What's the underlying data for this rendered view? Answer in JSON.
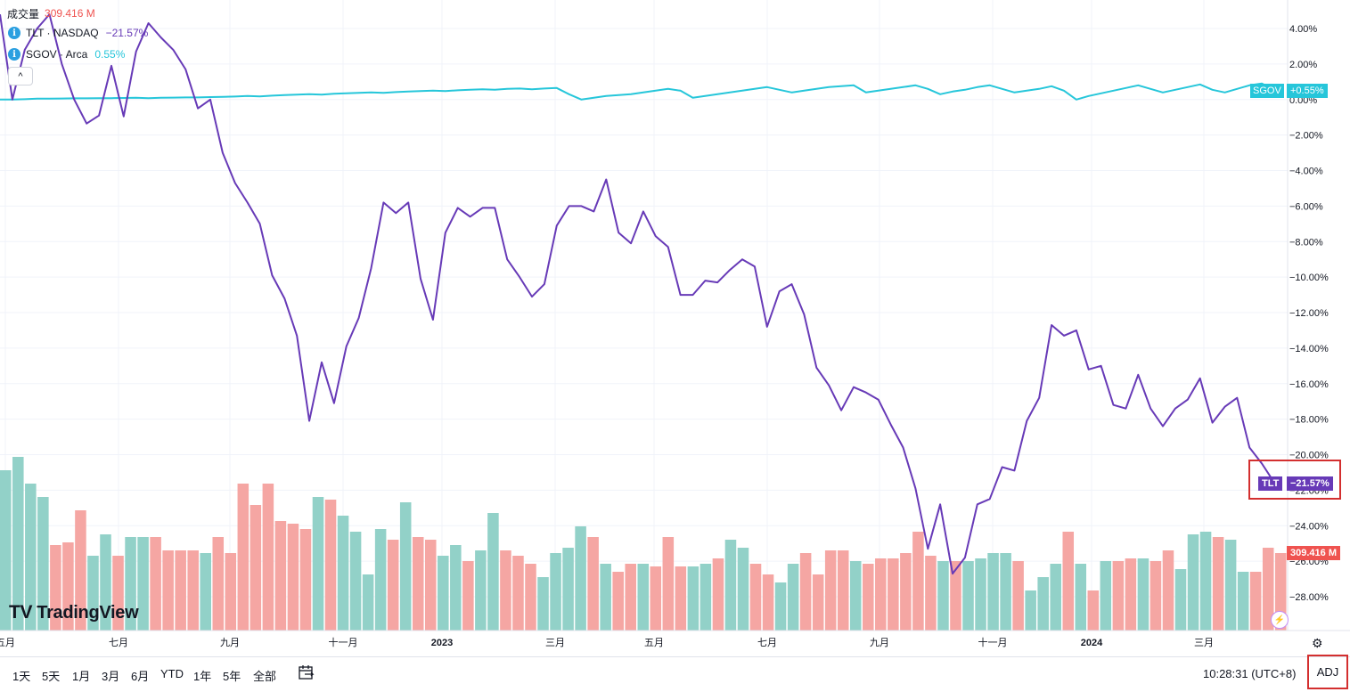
{
  "legend": {
    "volume_label": "成交量",
    "volume_value": "309.416 M",
    "series1_name": "TLT · NASDAQ",
    "series1_value": "−21.57%",
    "series2_name": "SGOV · Arca",
    "series2_value": "0.55%",
    "collapse_icon": "chevron-up-icon"
  },
  "colors": {
    "tlt": "#673ab7",
    "sgov": "#26c6da",
    "vol_up": "#92d1c8",
    "vol_down": "#f5a6a3",
    "vol_tag": "#ef5350",
    "grid": "#f0f3fa",
    "axis_text": "#131722",
    "highlight": "#d32f2f"
  },
  "price_tags": {
    "sgov_label": "SGOV",
    "sgov_value": "+0.55%",
    "tlt_label": "TLT",
    "tlt_value": "−21.57%",
    "volume_value": "309.416 M"
  },
  "branding": {
    "logo_text": "TradingView"
  },
  "bottom_bar": {
    "ranges": [
      "1天",
      "5天",
      "1月",
      "3月",
      "6月",
      "YTD",
      "1年",
      "5年",
      "全部"
    ],
    "clock": "10:28:31 (UTC+8)",
    "adj_label": "ADJ"
  },
  "chart_data": {
    "type": "line",
    "x_axis_labels": [
      "五月",
      "七月",
      "九月",
      "十一月",
      "2023",
      "三月",
      "五月",
      "七月",
      "九月",
      "十一月",
      "2024",
      "三月"
    ],
    "y_axis_labels": [
      "4.00%",
      "2.00%",
      "0.00%",
      "−2.00%",
      "−4.00%",
      "−6.00%",
      "−8.00%",
      "−10.00%",
      "−12.00%",
      "−14.00%",
      "−16.00%",
      "−18.00%",
      "−20.00%",
      "−22.00%",
      "−24.00%",
      "−26.00%",
      "−28.00%"
    ],
    "ylim": [
      -29.8,
      4.8
    ],
    "y_unit": "%",
    "grid": true,
    "series": [
      {
        "name": "TLT · NASDAQ",
        "values": [
          4.8,
          0.0,
          2.8,
          4.0,
          4.8,
          2.0,
          0.0,
          -1.35,
          -0.9,
          1.9,
          -0.95,
          2.7,
          4.3,
          3.5,
          2.8,
          1.7,
          -0.5,
          0.0,
          -3.0,
          -4.7,
          -5.8,
          -7.0,
          -9.9,
          -11.2,
          -13.3,
          -18.1,
          -14.8,
          -17.1,
          -13.9,
          -12.3,
          -9.5,
          -5.8,
          -6.4,
          -5.8,
          -10.1,
          -12.4,
          -7.5,
          -6.1,
          -6.6,
          -6.1,
          -6.1,
          -9.0,
          -10.0,
          -11.1,
          -10.4,
          -7.1,
          -6.0,
          -6.0,
          -6.3,
          -4.5,
          -7.5,
          -8.1,
          -6.3,
          -7.7,
          -8.3,
          -11.0,
          -11.0,
          -10.2,
          -10.3,
          -9.6,
          -9.0,
          -9.4,
          -12.8,
          -10.8,
          -10.4,
          -12.1,
          -15.1,
          -16.1,
          -17.5,
          -16.2,
          -16.5,
          -16.9,
          -18.3,
          -19.6,
          -21.9,
          -25.3,
          -22.8,
          -26.7,
          -25.8,
          -22.8,
          -22.5,
          -20.7,
          -20.9,
          -18.1,
          -16.8,
          -12.7,
          -13.3,
          -13.0,
          -15.2,
          -15.0,
          -17.2,
          -17.4,
          -15.5,
          -17.4,
          -18.4,
          -17.4,
          -16.9,
          -15.7,
          -18.2,
          -17.3,
          -16.8,
          -19.6,
          -20.5,
          -21.57
        ]
      },
      {
        "name": "SGOV · Arca",
        "values": [
          0.0,
          0.0,
          0.02,
          0.05,
          0.05,
          0.06,
          0.07,
          0.07,
          0.08,
          0.08,
          0.09,
          0.1,
          0.08,
          0.1,
          0.11,
          0.12,
          0.12,
          0.14,
          0.15,
          0.17,
          0.2,
          0.18,
          0.22,
          0.25,
          0.28,
          0.3,
          0.28,
          0.33,
          0.35,
          0.38,
          0.4,
          0.38,
          0.42,
          0.45,
          0.48,
          0.5,
          0.48,
          0.52,
          0.55,
          0.58,
          0.55,
          0.6,
          0.62,
          0.58,
          0.62,
          0.65,
          0.3,
          0.0,
          0.1,
          0.2,
          0.25,
          0.3,
          0.4,
          0.5,
          0.6,
          0.5,
          0.1,
          0.2,
          0.3,
          0.4,
          0.5,
          0.6,
          0.7,
          0.55,
          0.4,
          0.5,
          0.6,
          0.7,
          0.75,
          0.8,
          0.4,
          0.5,
          0.6,
          0.7,
          0.8,
          0.6,
          0.3,
          0.45,
          0.55,
          0.7,
          0.8,
          0.6,
          0.4,
          0.5,
          0.6,
          0.75,
          0.5,
          0.0,
          0.2,
          0.35,
          0.5,
          0.65,
          0.8,
          0.6,
          0.4,
          0.55,
          0.7,
          0.85,
          0.55,
          0.4,
          0.6,
          0.8,
          0.9,
          0.55
        ]
      },
      {
        "name": "成交量",
        "values": [
          60,
          65,
          55,
          50,
          32,
          33,
          45,
          28,
          36,
          28,
          35,
          35,
          35,
          30,
          30,
          30,
          29,
          35,
          29,
          55,
          47,
          55,
          41,
          40,
          38,
          50,
          49,
          43,
          37,
          21,
          38,
          34,
          48,
          35,
          34,
          28,
          32,
          26,
          30,
          44,
          30,
          28,
          25,
          20,
          29,
          31,
          39,
          35,
          25,
          22,
          25,
          25,
          24,
          35,
          24,
          24,
          25,
          27,
          34,
          31,
          25,
          21,
          18,
          25,
          29,
          21,
          30,
          30,
          26,
          25,
          27,
          27,
          29,
          37,
          28,
          26,
          26,
          26,
          27,
          29,
          29,
          26,
          15,
          20,
          25,
          37,
          25,
          15,
          26,
          26,
          27,
          27,
          26,
          30,
          23,
          36,
          37,
          35,
          34,
          22,
          22,
          31,
          29
        ]
      }
    ]
  }
}
